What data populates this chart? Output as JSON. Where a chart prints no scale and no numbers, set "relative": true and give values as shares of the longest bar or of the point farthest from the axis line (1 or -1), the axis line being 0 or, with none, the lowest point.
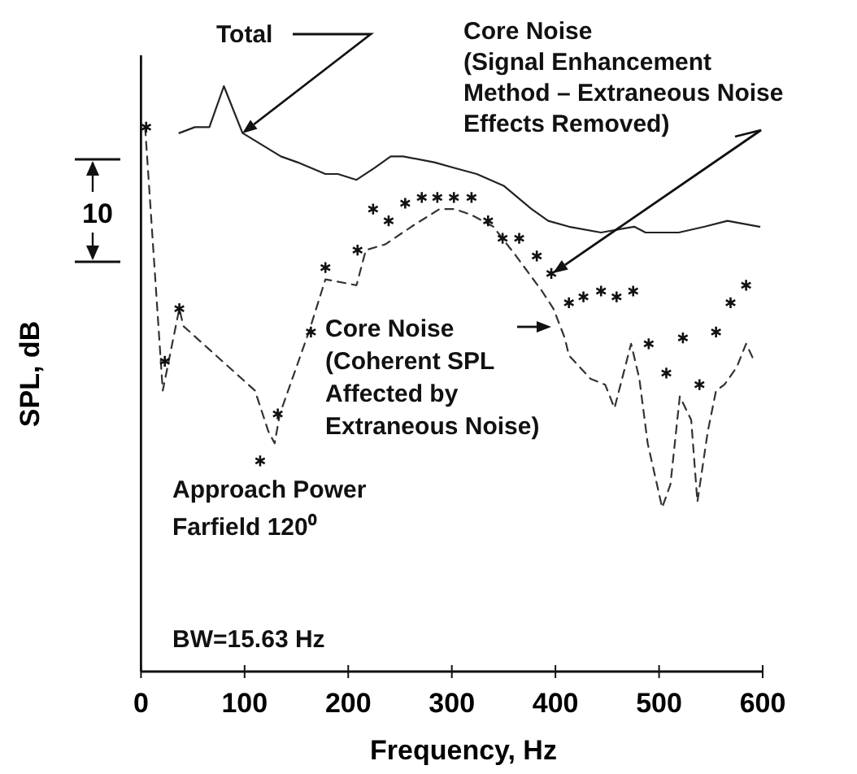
{
  "chart_data": {
    "type": "line",
    "relative": true,
    "xlabel": "Frequency, Hz",
    "ylabel": "SPL, dB",
    "xlim": [
      0,
      600
    ],
    "xticks": [
      0,
      100,
      200,
      300,
      400,
      500,
      600
    ],
    "series": [
      {
        "color": "#222222",
        "line_style": "solid",
        "marker": "none",
        "x": [
          37,
          52,
          66,
          80,
          98,
          135,
          151,
          178,
          190,
          208,
          225,
          241,
          253,
          283,
          303,
          324,
          350,
          377,
          393,
          413,
          444,
          476,
          487,
          519,
          544,
          566,
          597
        ],
        "values": [
          0.92,
          0.93,
          0.93,
          1.0,
          0.92,
          0.88,
          0.87,
          0.85,
          0.85,
          0.84,
          0.86,
          0.88,
          0.88,
          0.87,
          0.86,
          0.85,
          0.83,
          0.79,
          0.77,
          0.76,
          0.75,
          0.76,
          0.75,
          0.75,
          0.76,
          0.77,
          0.76
        ]
      },
      {
        "color": "#333333",
        "line_style": "dashed",
        "marker": "none",
        "x": [
          4,
          21,
          37,
          41,
          110,
          123,
          129,
          134,
          162,
          178,
          208,
          217,
          236,
          261,
          288,
          303,
          319,
          340,
          362,
          387,
          398,
          409,
          413,
          434,
          448,
          457,
          473,
          481,
          489,
          503,
          511,
          520,
          531,
          537,
          547,
          555,
          563,
          575,
          584,
          592
        ],
        "values": [
          0.93,
          0.48,
          0.62,
          0.59,
          0.48,
          0.41,
          0.39,
          0.44,
          0.58,
          0.67,
          0.66,
          0.72,
          0.73,
          0.76,
          0.79,
          0.79,
          0.78,
          0.76,
          0.71,
          0.65,
          0.62,
          0.57,
          0.54,
          0.5,
          0.49,
          0.45,
          0.56,
          0.5,
          0.39,
          0.28,
          0.32,
          0.47,
          0.43,
          0.29,
          0.41,
          0.48,
          0.49,
          0.52,
          0.56,
          0.53
        ]
      },
      {
        "type": "scatter",
        "color": "#111111",
        "marker": "cross",
        "x": [
          5,
          23,
          37,
          115,
          132,
          164,
          178,
          209,
          224,
          239,
          255,
          271,
          286,
          302,
          319,
          335,
          349,
          365,
          382,
          396,
          413,
          427,
          444,
          459,
          475,
          490,
          507,
          523,
          539,
          555,
          569,
          584
        ],
        "values": [
          0.93,
          0.53,
          0.62,
          0.36,
          0.44,
          0.58,
          0.69,
          0.72,
          0.79,
          0.77,
          0.8,
          0.81,
          0.81,
          0.81,
          0.81,
          0.77,
          0.74,
          0.74,
          0.71,
          0.68,
          0.63,
          0.64,
          0.65,
          0.64,
          0.65,
          0.56,
          0.51,
          0.57,
          0.49,
          0.58,
          0.63,
          0.66
        ]
      }
    ],
    "annotations": [
      "Total",
      "Core Noise\n(Signal Enhancement\nMethod – Extraneous Noise\nEffects Removed)",
      "Core Noise\n(Coherent SPL\nAffected by\nExtraneous Noise)",
      "Approach Power\nFarfield 120⁰",
      "BW=15.63 Hz",
      "10"
    ]
  }
}
